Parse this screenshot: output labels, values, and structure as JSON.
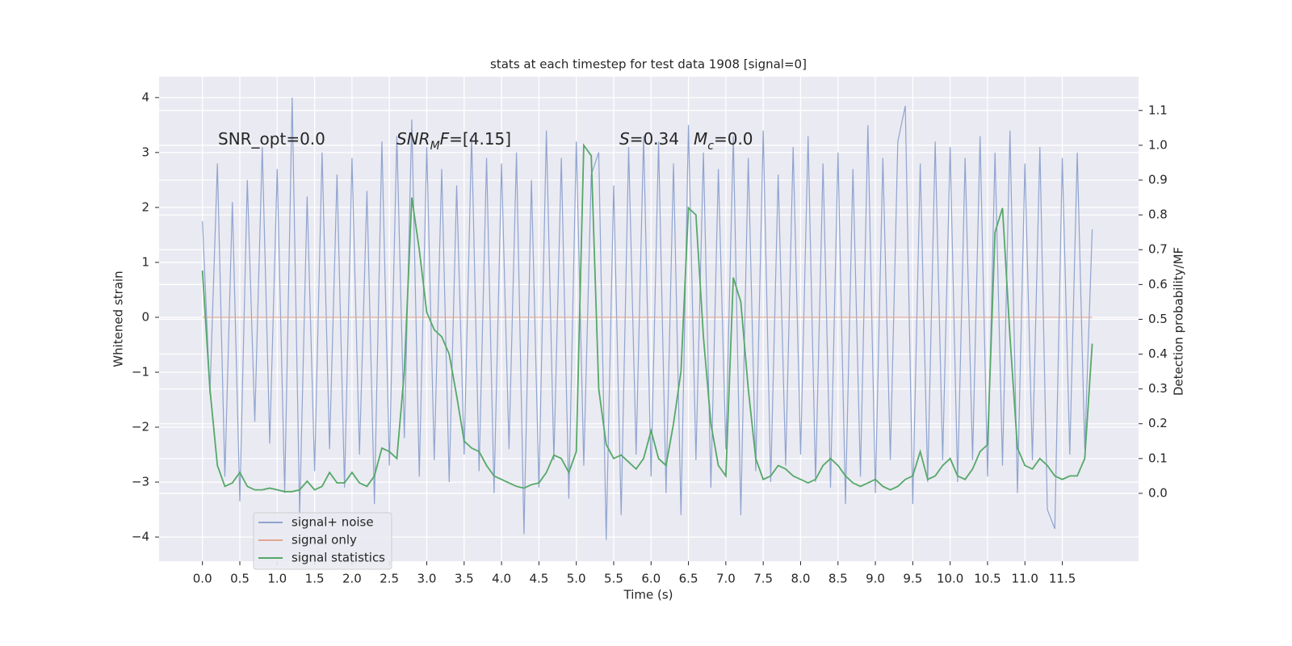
{
  "chart_data": {
    "type": "line",
    "title": "stats at each timestep for test data 1908 [signal=0]",
    "xlabel": "Time (s)",
    "ylabel": "Whitened strain",
    "y2label": "Detection probability/MF",
    "x": [
      0,
      0.1,
      0.2,
      0.3,
      0.4,
      0.5,
      0.6,
      0.7,
      0.8,
      0.9,
      1,
      1.1,
      1.2,
      1.3,
      1.4,
      1.5,
      1.6,
      1.7,
      1.8,
      1.9,
      2,
      2.1,
      2.2,
      2.3,
      2.4,
      2.5,
      2.6,
      2.7,
      2.8,
      2.9,
      3,
      3.1,
      3.2,
      3.3,
      3.4,
      3.5,
      3.6,
      3.7,
      3.8,
      3.9,
      4,
      4.1,
      4.2,
      4.3,
      4.4,
      4.5,
      4.6,
      4.7,
      4.8,
      4.9,
      5,
      5.1,
      5.2,
      5.3,
      5.4,
      5.5,
      5.6,
      5.7,
      5.8,
      5.9,
      6,
      6.1,
      6.2,
      6.3,
      6.4,
      6.5,
      6.6,
      6.7,
      6.8,
      6.9,
      7,
      7.1,
      7.2,
      7.3,
      7.4,
      7.5,
      7.6,
      7.7,
      7.8,
      7.9,
      8,
      8.1,
      8.2,
      8.3,
      8.4,
      8.5,
      8.6,
      8.7,
      8.8,
      8.9,
      9,
      9.1,
      9.2,
      9.3,
      9.4,
      9.5,
      9.6,
      9.7,
      9.8,
      9.9,
      10,
      10.1,
      10.2,
      10.3,
      10.4,
      10.5,
      10.6,
      10.7,
      10.8,
      10.9,
      11,
      11.1,
      11.2,
      11.3,
      11.4,
      11.5,
      11.6,
      11.7,
      11.8,
      11.9
    ],
    "series": [
      {
        "name": "signal+ noise",
        "color": "#8fa4cf",
        "values": [
          1.75,
          -1.4,
          2.8,
          -2.9,
          2.1,
          -3.35,
          2.5,
          -1.9,
          3.1,
          -2.3,
          2.7,
          -3.2,
          4.0,
          -3.6,
          2.2,
          -2.8,
          3.0,
          -2.4,
          2.6,
          -3.1,
          2.9,
          -2.5,
          2.3,
          -3.4,
          3.2,
          -2.7,
          3.3,
          -2.2,
          3.6,
          -2.9,
          3.1,
          -2.6,
          2.7,
          -3.0,
          2.4,
          -2.5,
          3.3,
          -2.8,
          2.9,
          -3.2,
          2.8,
          -2.4,
          3.0,
          -3.95,
          2.5,
          -3.1,
          3.4,
          -2.6,
          2.9,
          -3.3,
          3.2,
          -2.7,
          2.6,
          3.0,
          -4.05,
          2.4,
          -3.6,
          3.1,
          -2.5,
          3.3,
          -2.9,
          3.2,
          -3.2,
          2.8,
          -3.6,
          3.5,
          -2.6,
          3.0,
          -3.1,
          2.7,
          -2.4,
          3.3,
          -3.6,
          2.9,
          -2.8,
          3.4,
          -3.0,
          2.6,
          -2.7,
          3.1,
          -2.5,
          3.3,
          -3.0,
          2.8,
          -3.1,
          3.0,
          -3.4,
          2.7,
          -2.9,
          3.5,
          -3.2,
          2.9,
          -2.6,
          3.2,
          3.85,
          -3.4,
          2.8,
          -3.0,
          3.2,
          -2.6,
          3.1,
          -3.0,
          2.9,
          -2.6,
          3.3,
          -2.9,
          3.0,
          -2.7,
          3.4,
          -3.2,
          2.8,
          -2.6,
          3.1,
          -3.5,
          -3.85,
          2.9,
          -2.5,
          3.0,
          -2.4,
          1.6
        ]
      },
      {
        "name": "signal only",
        "color": "#e0a890",
        "values": [
          0,
          0,
          0,
          0,
          0,
          0,
          0,
          0,
          0,
          0,
          0,
          0,
          0,
          0,
          0,
          0,
          0,
          0,
          0,
          0,
          0,
          0,
          0,
          0,
          0,
          0,
          0,
          0,
          0,
          0,
          0,
          0,
          0,
          0,
          0,
          0,
          0,
          0,
          0,
          0,
          0,
          0,
          0,
          0,
          0,
          0,
          0,
          0,
          0,
          0,
          0,
          0,
          0,
          0,
          0,
          0,
          0,
          0,
          0,
          0,
          0,
          0,
          0,
          0,
          0,
          0,
          0,
          0,
          0,
          0,
          0,
          0,
          0,
          0,
          0,
          0,
          0,
          0,
          0,
          0,
          0,
          0,
          0,
          0,
          0,
          0,
          0,
          0,
          0,
          0,
          0,
          0,
          0,
          0,
          0,
          0,
          0,
          0,
          0,
          0,
          0,
          0,
          0,
          0,
          0,
          0,
          0,
          0,
          0,
          0,
          0,
          0,
          0,
          0,
          0,
          0,
          0,
          0,
          0,
          0
        ]
      },
      {
        "name": "signal statistics",
        "color": "#55a868",
        "axis": "y2",
        "values": [
          0.64,
          0.3,
          0.08,
          0.02,
          0.03,
          0.06,
          0.02,
          0.01,
          0.01,
          0.015,
          0.01,
          0.005,
          0.005,
          0.01,
          0.035,
          0.01,
          0.02,
          0.06,
          0.03,
          0.03,
          0.06,
          0.03,
          0.02,
          0.05,
          0.13,
          0.12,
          0.1,
          0.35,
          0.85,
          0.7,
          0.52,
          0.47,
          0.45,
          0.4,
          0.28,
          0.15,
          0.13,
          0.12,
          0.08,
          0.05,
          0.04,
          0.03,
          0.02,
          0.015,
          0.025,
          0.03,
          0.06,
          0.11,
          0.1,
          0.06,
          0.12,
          1.0,
          0.97,
          0.3,
          0.14,
          0.1,
          0.11,
          0.09,
          0.07,
          0.1,
          0.18,
          0.1,
          0.08,
          0.2,
          0.35,
          0.82,
          0.8,
          0.45,
          0.2,
          0.08,
          0.05,
          0.62,
          0.55,
          0.3,
          0.1,
          0.04,
          0.05,
          0.08,
          0.07,
          0.05,
          0.04,
          0.03,
          0.04,
          0.08,
          0.1,
          0.08,
          0.05,
          0.03,
          0.02,
          0.03,
          0.04,
          0.02,
          0.01,
          0.02,
          0.04,
          0.05,
          0.12,
          0.04,
          0.05,
          0.08,
          0.1,
          0.05,
          0.04,
          0.07,
          0.12,
          0.14,
          0.75,
          0.82,
          0.45,
          0.13,
          0.08,
          0.07,
          0.1,
          0.08,
          0.05,
          0.04,
          0.05,
          0.05,
          0.1,
          0.43
        ]
      }
    ],
    "xlim": [
      -0.58,
      12.52
    ],
    "ylim": [
      -4.44,
      4.38
    ],
    "y2lim": [
      -0.195,
      1.197
    ],
    "xticks": [
      {
        "value": 0,
        "label": "0.0"
      },
      0.5,
      {
        "value": 1,
        "label": "1.0"
      },
      1.5,
      {
        "value": 2,
        "label": "2.0"
      },
      2.5,
      {
        "value": 3,
        "label": "3.0"
      },
      3.5,
      {
        "value": 4,
        "label": "4.0"
      },
      4.5,
      {
        "value": 5,
        "label": "5.0"
      },
      5.5,
      {
        "value": 6,
        "label": "6.0"
      },
      6.5,
      {
        "value": 7,
        "label": "7.0"
      },
      7.5,
      {
        "value": 8,
        "label": "8.0"
      },
      8.5,
      {
        "value": 9,
        "label": "9.0"
      },
      9.5,
      {
        "value": 10,
        "label": "10.0"
      },
      10.5,
      {
        "value": 11,
        "label": "11.0"
      },
      11.5
    ],
    "yticks": [
      {
        "value": -4,
        "label": "−4"
      },
      {
        "value": -3,
        "label": "−3"
      },
      {
        "value": -2,
        "label": "−2"
      },
      {
        "value": -1,
        "label": "−1"
      },
      0,
      1,
      2,
      3,
      4
    ],
    "y2ticks": [
      {
        "value": 0,
        "label": "0.0"
      },
      0.1,
      0.2,
      0.3,
      0.4,
      0.5,
      0.6,
      0.7,
      0.8,
      0.9,
      {
        "value": 1,
        "label": "1.0"
      },
      1.1
    ],
    "grid": true,
    "legend": "lower left",
    "annotations": [
      {
        "parts": [
          {
            "text": "SNR_opt=0.0"
          }
        ]
      },
      {
        "parts": [
          {
            "text": "SNR",
            "italic": true
          },
          {
            "text": "M",
            "italic": true,
            "sub": true
          },
          {
            "text": "F",
            "italic": true
          },
          {
            "text": "=[4.15]"
          }
        ]
      },
      {
        "parts": [
          {
            "text": "S",
            "italic": true
          },
          {
            "text": "=0.34"
          }
        ]
      },
      {
        "parts": [
          {
            "text": "M",
            "italic": true
          },
          {
            "text": "c",
            "italic": true,
            "sub": true
          },
          {
            "text": "=0.0"
          }
        ]
      }
    ]
  }
}
